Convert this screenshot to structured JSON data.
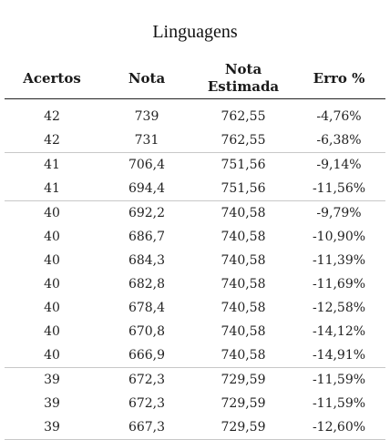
{
  "title": "Linguagens",
  "headers": {
    "acertos": "Acertos",
    "nota": "Nota",
    "nota_estimada_line1": "Nota",
    "nota_estimada_line2": "Estimada",
    "erro": "Erro %"
  },
  "rows": [
    {
      "acertos": "42",
      "nota": "739",
      "nota_estimada": "762,55",
      "erro": "-4,76%"
    },
    {
      "acertos": "42",
      "nota": "731",
      "nota_estimada": "762,55",
      "erro": "-6,38%"
    },
    {
      "acertos": "41",
      "nota": "706,4",
      "nota_estimada": "751,56",
      "erro": "-9,14%"
    },
    {
      "acertos": "41",
      "nota": "694,4",
      "nota_estimada": "751,56",
      "erro": "-11,56%"
    },
    {
      "acertos": "40",
      "nota": "692,2",
      "nota_estimada": "740,58",
      "erro": "-9,79%"
    },
    {
      "acertos": "40",
      "nota": "686,7",
      "nota_estimada": "740,58",
      "erro": "-10,90%"
    },
    {
      "acertos": "40",
      "nota": "684,3",
      "nota_estimada": "740,58",
      "erro": "-11,39%"
    },
    {
      "acertos": "40",
      "nota": "682,8",
      "nota_estimada": "740,58",
      "erro": "-11,69%"
    },
    {
      "acertos": "40",
      "nota": "678,4",
      "nota_estimada": "740,58",
      "erro": "-12,58%"
    },
    {
      "acertos": "40",
      "nota": "670,8",
      "nota_estimada": "740,58",
      "erro": "-14,12%"
    },
    {
      "acertos": "40",
      "nota": "666,9",
      "nota_estimada": "740,58",
      "erro": "-14,91%"
    },
    {
      "acertos": "39",
      "nota": "672,3",
      "nota_estimada": "729,59",
      "erro": "-11,59%"
    },
    {
      "acertos": "39",
      "nota": "672,3",
      "nota_estimada": "729,59",
      "erro": "-11,59%"
    },
    {
      "acertos": "39",
      "nota": "667,3",
      "nota_estimada": "729,59",
      "erro": "-12,60%"
    }
  ]
}
